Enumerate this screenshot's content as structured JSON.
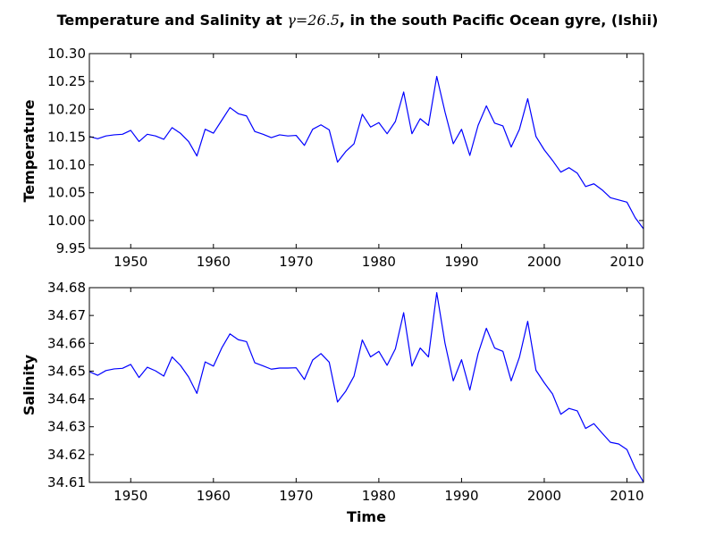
{
  "chart_data": {
    "type": "line",
    "title": {
      "prefix": "Temperature and Salinity at ",
      "math": "γ=26.5",
      "suffix": ", in the south Pacific Ocean gyre, (Ishii)"
    },
    "xlabel": "Time",
    "xlim": [
      1945,
      2012
    ],
    "x_ticks": [
      1950,
      1960,
      1970,
      1980,
      1990,
      2000,
      2010
    ],
    "x": [
      1945,
      1946,
      1947,
      1948,
      1949,
      1950,
      1951,
      1952,
      1953,
      1954,
      1955,
      1956,
      1957,
      1958,
      1959,
      1960,
      1961,
      1962,
      1963,
      1964,
      1965,
      1966,
      1967,
      1968,
      1969,
      1970,
      1971,
      1972,
      1973,
      1974,
      1975,
      1976,
      1977,
      1978,
      1979,
      1980,
      1981,
      1982,
      1983,
      1984,
      1985,
      1986,
      1987,
      1988,
      1989,
      1990,
      1991,
      1992,
      1993,
      1994,
      1995,
      1996,
      1997,
      1998,
      1999,
      2000,
      2001,
      2002,
      2003,
      2004,
      2005,
      2006,
      2007,
      2008,
      2009,
      2010,
      2011,
      2012
    ],
    "panels": [
      {
        "ylabel": "Temperature",
        "ylim": [
          9.95,
          10.3
        ],
        "y_ticks": [
          9.95,
          10.0,
          10.05,
          10.1,
          10.15,
          10.2,
          10.25,
          10.3
        ],
        "y_tick_labels": [
          "9.95",
          "10.00",
          "10.05",
          "10.10",
          "10.15",
          "10.20",
          "10.25",
          "10.30"
        ],
        "values": [
          10.151,
          10.147,
          10.152,
          10.154,
          10.155,
          10.162,
          10.142,
          10.155,
          10.152,
          10.146,
          10.167,
          10.157,
          10.142,
          10.116,
          10.164,
          10.157,
          10.18,
          10.203,
          10.192,
          10.188,
          10.16,
          10.155,
          10.149,
          10.154,
          10.152,
          10.153,
          10.135,
          10.164,
          10.172,
          10.163,
          10.105,
          10.124,
          10.138,
          10.191,
          10.168,
          10.176,
          10.156,
          10.178,
          10.231,
          10.156,
          10.183,
          10.171,
          10.259,
          10.195,
          10.138,
          10.164,
          10.117,
          10.171,
          10.206,
          10.175,
          10.17,
          10.132,
          10.164,
          10.219,
          10.151,
          10.127,
          10.108,
          10.087,
          10.095,
          10.085,
          10.061,
          10.066,
          10.055,
          10.041,
          10.037,
          10.033,
          10.005,
          9.985
        ]
      },
      {
        "ylabel": "Salinity",
        "ylim": [
          34.61,
          34.68
        ],
        "y_ticks": [
          34.61,
          34.62,
          34.63,
          34.64,
          34.65,
          34.66,
          34.67,
          34.68
        ],
        "y_tick_labels": [
          "34.61",
          "34.62",
          "34.63",
          "34.64",
          "34.65",
          "34.66",
          "34.67",
          "34.68"
        ],
        "values": [
          34.6498,
          34.6485,
          34.6502,
          34.6508,
          34.651,
          34.6524,
          34.6477,
          34.6514,
          34.6501,
          34.6482,
          34.6551,
          34.6521,
          34.6479,
          34.642,
          34.6533,
          34.6518,
          34.6583,
          34.6634,
          34.6613,
          34.6606,
          34.653,
          34.6519,
          34.6507,
          34.6511,
          34.6511,
          34.6512,
          34.647,
          34.654,
          34.6563,
          34.6532,
          34.6389,
          34.6428,
          34.6482,
          34.6612,
          34.6551,
          34.6571,
          34.6521,
          34.658,
          34.671,
          34.6518,
          34.6583,
          34.6551,
          34.6782,
          34.66,
          34.6465,
          34.6541,
          34.6432,
          34.6563,
          34.6654,
          34.6583,
          34.6571,
          34.6465,
          34.655,
          34.6679,
          34.6503,
          34.6458,
          34.6418,
          34.6345,
          34.6366,
          34.6357,
          34.6294,
          34.6311,
          34.6277,
          34.6244,
          34.6238,
          34.6218,
          34.6151,
          34.6101
        ]
      }
    ]
  }
}
